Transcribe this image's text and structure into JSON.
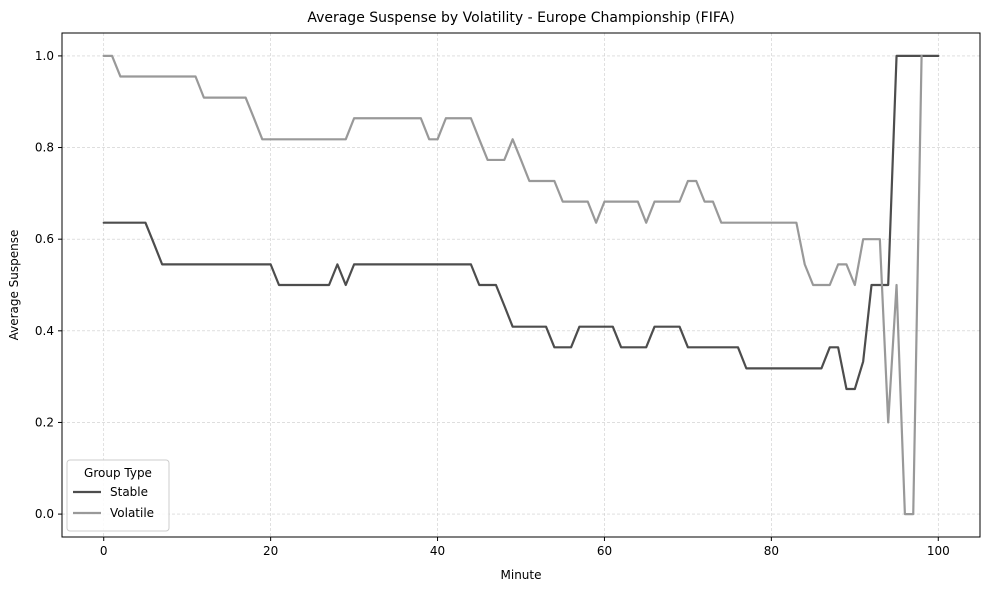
{
  "chart_data": {
    "type": "line",
    "title": "Average Suspense by Volatility - Europe Championship (FIFA)",
    "xlabel": "Minute",
    "ylabel": "Average Suspense",
    "xlim": [
      -5,
      105
    ],
    "ylim": [
      -0.05,
      1.05
    ],
    "xticks": [
      0,
      20,
      40,
      60,
      80,
      100
    ],
    "yticks": [
      0.0,
      0.2,
      0.4,
      0.6,
      0.8,
      1.0
    ],
    "xtick_labels": [
      "0",
      "20",
      "40",
      "60",
      "80",
      "100"
    ],
    "ytick_labels": [
      "0.0",
      "0.2",
      "0.4",
      "0.6",
      "0.8",
      "1.0"
    ],
    "grid": true,
    "legend": {
      "title": "Group Type",
      "placement": "lower-left"
    },
    "series": [
      {
        "name": "Stable",
        "color": "#4d4d4d",
        "x": [
          0,
          1,
          2,
          3,
          4,
          5,
          6,
          7,
          8,
          9,
          10,
          11,
          12,
          13,
          14,
          15,
          16,
          17,
          18,
          19,
          20,
          21,
          22,
          23,
          24,
          25,
          26,
          27,
          28,
          29,
          30,
          31,
          32,
          33,
          34,
          35,
          36,
          37,
          38,
          39,
          40,
          41,
          42,
          43,
          44,
          45,
          46,
          47,
          48,
          49,
          50,
          51,
          52,
          53,
          54,
          55,
          56,
          57,
          58,
          59,
          60,
          61,
          62,
          63,
          64,
          65,
          66,
          67,
          68,
          69,
          70,
          71,
          72,
          73,
          74,
          75,
          76,
          77,
          78,
          79,
          80,
          81,
          82,
          83,
          84,
          85,
          86,
          87,
          88,
          89,
          90,
          91,
          92,
          93,
          94,
          95,
          96,
          97,
          98,
          99,
          100
        ],
        "values": [
          0.636,
          0.636,
          0.636,
          0.636,
          0.636,
          0.636,
          0.591,
          0.545,
          0.545,
          0.545,
          0.545,
          0.545,
          0.545,
          0.545,
          0.545,
          0.545,
          0.545,
          0.545,
          0.545,
          0.545,
          0.545,
          0.5,
          0.5,
          0.5,
          0.5,
          0.5,
          0.5,
          0.5,
          0.545,
          0.5,
          0.545,
          0.545,
          0.545,
          0.545,
          0.545,
          0.545,
          0.545,
          0.545,
          0.545,
          0.545,
          0.545,
          0.545,
          0.545,
          0.545,
          0.545,
          0.5,
          0.5,
          0.5,
          0.455,
          0.409,
          0.409,
          0.409,
          0.409,
          0.409,
          0.364,
          0.364,
          0.364,
          0.409,
          0.409,
          0.409,
          0.409,
          0.409,
          0.364,
          0.364,
          0.364,
          0.364,
          0.409,
          0.409,
          0.409,
          0.409,
          0.364,
          0.364,
          0.364,
          0.364,
          0.364,
          0.364,
          0.364,
          0.318,
          0.318,
          0.318,
          0.318,
          0.318,
          0.318,
          0.318,
          0.318,
          0.318,
          0.318,
          0.364,
          0.364,
          0.273,
          0.273,
          0.333,
          0.5,
          0.5,
          0.5,
          1.0,
          1.0,
          1.0,
          1.0,
          1.0,
          1.0
        ]
      },
      {
        "name": "Volatile",
        "color": "#999999",
        "x": [
          0,
          1,
          2,
          3,
          4,
          5,
          6,
          7,
          8,
          9,
          10,
          11,
          12,
          13,
          14,
          15,
          16,
          17,
          18,
          19,
          20,
          21,
          22,
          23,
          24,
          25,
          26,
          27,
          28,
          29,
          30,
          31,
          32,
          33,
          34,
          35,
          36,
          37,
          38,
          39,
          40,
          41,
          42,
          43,
          44,
          45,
          46,
          47,
          48,
          49,
          50,
          51,
          52,
          53,
          54,
          55,
          56,
          57,
          58,
          59,
          60,
          61,
          62,
          63,
          64,
          65,
          66,
          67,
          68,
          69,
          70,
          71,
          72,
          73,
          74,
          75,
          76,
          77,
          78,
          79,
          80,
          81,
          82,
          83,
          84,
          85,
          86,
          87,
          88,
          89,
          90,
          91,
          92,
          93,
          94,
          95,
          96,
          97,
          98
        ],
        "values": [
          1.0,
          1.0,
          0.955,
          0.955,
          0.955,
          0.955,
          0.955,
          0.955,
          0.955,
          0.955,
          0.955,
          0.955,
          0.909,
          0.909,
          0.909,
          0.909,
          0.909,
          0.909,
          0.864,
          0.818,
          0.818,
          0.818,
          0.818,
          0.818,
          0.818,
          0.818,
          0.818,
          0.818,
          0.818,
          0.818,
          0.864,
          0.864,
          0.864,
          0.864,
          0.864,
          0.864,
          0.864,
          0.864,
          0.864,
          0.818,
          0.818,
          0.864,
          0.864,
          0.864,
          0.864,
          0.818,
          0.773,
          0.773,
          0.773,
          0.818,
          0.773,
          0.727,
          0.727,
          0.727,
          0.727,
          0.682,
          0.682,
          0.682,
          0.682,
          0.636,
          0.682,
          0.682,
          0.682,
          0.682,
          0.682,
          0.636,
          0.682,
          0.682,
          0.682,
          0.682,
          0.727,
          0.727,
          0.682,
          0.682,
          0.636,
          0.636,
          0.636,
          0.636,
          0.636,
          0.636,
          0.636,
          0.636,
          0.636,
          0.636,
          0.545,
          0.5,
          0.5,
          0.5,
          0.545,
          0.545,
          0.5,
          0.6,
          0.6,
          0.6,
          0.2,
          0.5,
          0.0,
          0.0,
          1.0
        ]
      }
    ]
  }
}
